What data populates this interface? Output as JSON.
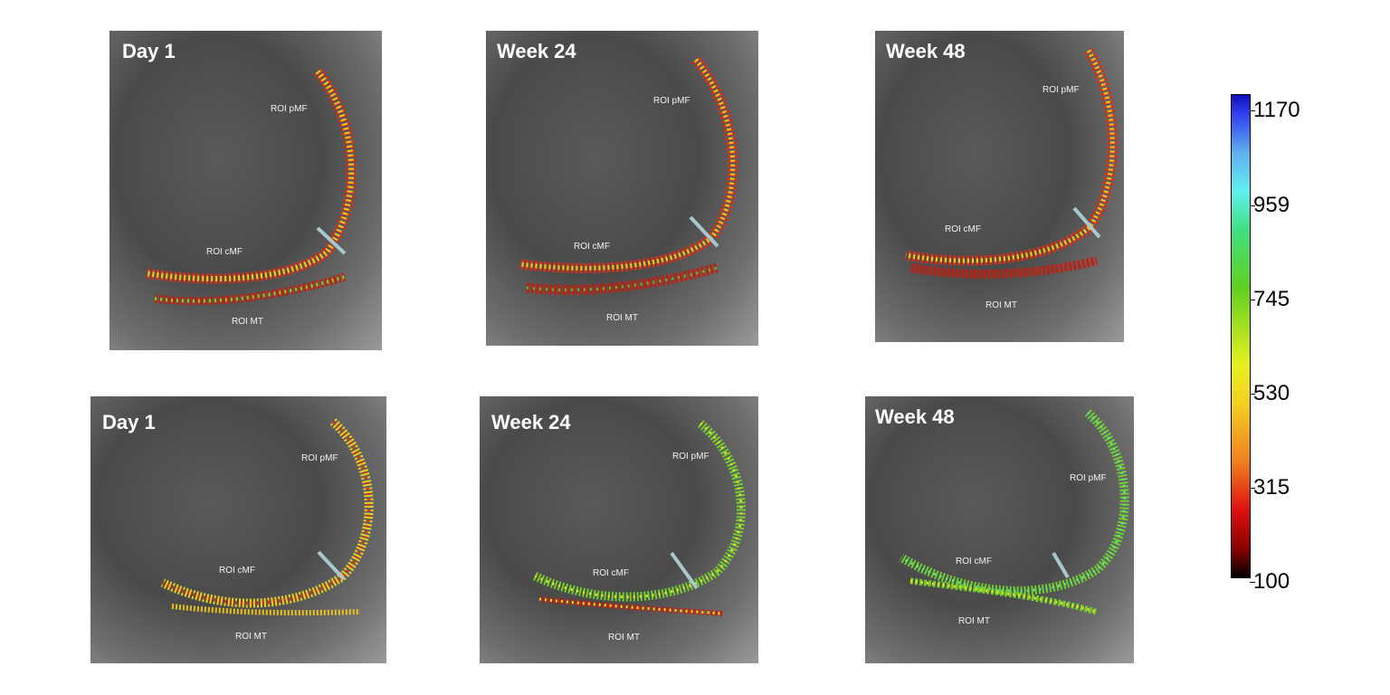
{
  "panels": [
    {
      "title": "Day 1",
      "roi_pmf": "ROI   pMF",
      "roi_cmf": "ROI   cMF",
      "roi_mt": "ROI   MT"
    },
    {
      "title": "Week 24",
      "roi_pmf": "ROI   pMF",
      "roi_cmf": "ROI   cMF",
      "roi_mt": "ROI   MT"
    },
    {
      "title": "Week 48",
      "roi_pmf": "ROI   pMF",
      "roi_cmf": "ROI   cMF",
      "roi_mt": "ROI   MT"
    },
    {
      "title": "Day 1",
      "roi_pmf": "ROI pMF",
      "roi_cmf": "ROI cMF",
      "roi_mt": "ROI MT"
    },
    {
      "title": "Week 24",
      "roi_pmf": "ROI pMF",
      "roi_cmf": "ROI cMF",
      "roi_mt": "ROI MT"
    },
    {
      "title": "Week 48",
      "roi_pmf": "ROI pMF",
      "roi_cmf": "ROI cMF",
      "roi_mt": "ROI MT"
    }
  ],
  "colorbar": {
    "ticks": [
      "1170",
      "959",
      "745",
      "530",
      "315",
      "100"
    ],
    "colors": [
      "#000000",
      "#d01010",
      "#f4d020",
      "#60d020",
      "#60f0f0",
      "#1010c0"
    ]
  }
}
